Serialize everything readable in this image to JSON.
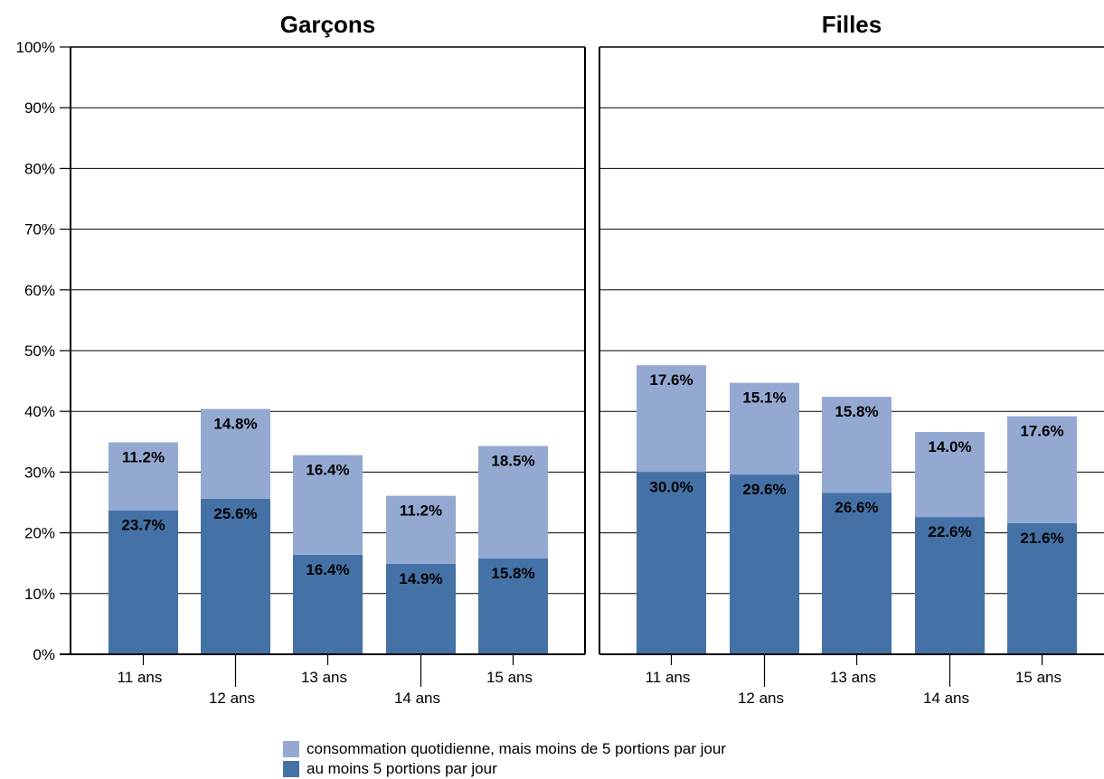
{
  "chart_data": {
    "type": "bar",
    "stacked": true,
    "y_axis": {
      "ylim": [
        0,
        100
      ],
      "ticks": [
        "0%",
        "10%",
        "20%",
        "30%",
        "40%",
        "50%",
        "60%",
        "70%",
        "80%",
        "90%",
        "100%"
      ],
      "grid": true
    },
    "legend": {
      "placement": "bottom",
      "entries": [
        {
          "name": "consommation quotidienne, mais moins de 5 portions par jour",
          "color": "#94a9d1"
        },
        {
          "name": "au moins 5 portions par jour",
          "color": "#4472a6"
        }
      ]
    },
    "panels": [
      {
        "title": "Garçons",
        "categories": [
          "11 ans",
          "12 ans",
          "13 ans",
          "14 ans",
          "15 ans"
        ],
        "series": [
          {
            "name": "au moins 5 portions par jour",
            "values": [
              23.7,
              25.6,
              16.4,
              14.9,
              15.8
            ],
            "labels": [
              "23.7%",
              "25.6%",
              "16.4%",
              "14.9%",
              "15.8%"
            ]
          },
          {
            "name": "consommation quotidienne, mais moins de 5 portions par jour",
            "values": [
              11.2,
              14.8,
              16.4,
              11.2,
              18.5
            ],
            "labels": [
              "11.2%",
              "14.8%",
              "16.4%",
              "11.2%",
              "18.5%"
            ]
          }
        ]
      },
      {
        "title": "Filles",
        "categories": [
          "11 ans",
          "12 ans",
          "13 ans",
          "14 ans",
          "15 ans"
        ],
        "series": [
          {
            "name": "au moins 5 portions par jour",
            "values": [
              30.0,
              29.6,
              26.6,
              22.6,
              21.6
            ],
            "labels": [
              "30.0%",
              "29.6%",
              "26.6%",
              "22.6%",
              "21.6%"
            ]
          },
          {
            "name": "consommation quotidienne, mais moins de 5 portions par jour",
            "values": [
              17.6,
              15.1,
              15.8,
              14.0,
              17.6
            ],
            "labels": [
              "17.6%",
              "15.1%",
              "15.8%",
              "14.0%",
              "17.6%"
            ]
          }
        ]
      }
    ]
  }
}
